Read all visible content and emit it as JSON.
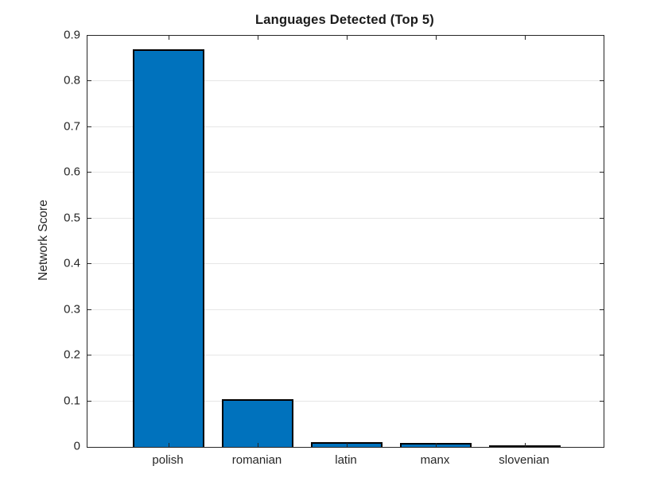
{
  "chart_data": {
    "type": "bar",
    "title": "Languages Detected (Top 5)",
    "xlabel": "",
    "ylabel": "Network Score",
    "categories": [
      "polish",
      "romanian",
      "latin",
      "manx",
      "slovenian"
    ],
    "values": [
      0.87,
      0.104,
      0.011,
      0.009,
      0.004
    ],
    "ylim": [
      0,
      0.9
    ],
    "ytick_interval": 0.1,
    "ytick_labels": [
      "0",
      "0.1",
      "0.2",
      "0.3",
      "0.4",
      "0.5",
      "0.6",
      "0.7",
      "0.8",
      "0.9"
    ],
    "grid": "horizontal-only",
    "legend": "none",
    "colors": {
      "bar_fill": "#0072BD",
      "bar_edge": "#000000",
      "axis": "#262626",
      "gridline": "#e6e6e6",
      "background": "#ffffff",
      "title_text": "#1a1a1a",
      "tick_text": "#262626"
    }
  }
}
